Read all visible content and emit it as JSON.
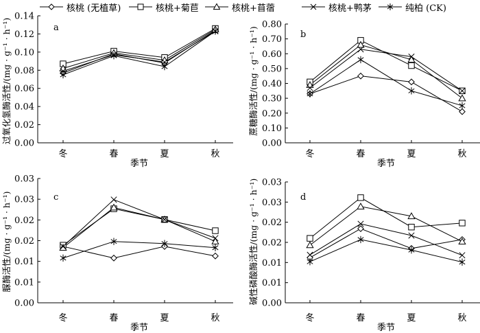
{
  "legend": [
    {
      "label": "核桃 (无植草)",
      "marker": "diamond"
    },
    {
      "label": "核桃+菊苣",
      "marker": "square"
    },
    {
      "label": "核桃+苜蓿",
      "marker": "triangle"
    },
    {
      "label": "核桃+鸭茅",
      "marker": "x"
    },
    {
      "label": "纯柏 (CK)",
      "marker": "asterisk"
    }
  ],
  "chart_data": [
    {
      "type": "line",
      "panel": "a",
      "title": "",
      "xlabel": "季节",
      "ylabel": "过氧化氢酶活性/(mg · g⁻¹ · h⁻¹)",
      "categories": [
        "冬",
        "春",
        "夏",
        "秋"
      ],
      "ylim": [
        0,
        0.14
      ],
      "yticks": [
        0,
        0.02,
        0.04,
        0.06,
        0.08,
        0.1,
        0.12,
        0.14
      ],
      "ytick_labels": [
        "0.00",
        "0.02",
        "0.04",
        "0.06",
        "0.08",
        "0.10",
        "0.12",
        "0.14"
      ],
      "series": [
        {
          "name": "核桃 (无植草)",
          "marker": "diamond",
          "values": [
            0.077,
            0.098,
            0.088,
            0.124
          ]
        },
        {
          "name": "核桃+菊苣",
          "marker": "square",
          "values": [
            0.087,
            0.101,
            0.094,
            0.126
          ]
        },
        {
          "name": "核桃+苜蓿",
          "marker": "triangle",
          "values": [
            0.082,
            0.099,
            0.091,
            0.125
          ]
        },
        {
          "name": "核桃+鸭茅",
          "marker": "x",
          "values": [
            0.079,
            0.097,
            0.089,
            0.123
          ]
        },
        {
          "name": "纯柏 (CK)",
          "marker": "asterisk",
          "values": [
            0.075,
            0.096,
            0.084,
            0.123
          ]
        }
      ]
    },
    {
      "type": "line",
      "panel": "b",
      "title": "",
      "xlabel": "季节",
      "ylabel": "蔗糖酶活性/(mg · g⁻¹ · h⁻¹)",
      "categories": [
        "冬",
        "春",
        "夏",
        "秋"
      ],
      "ylim": [
        0,
        0.8
      ],
      "yticks": [
        0,
        0.1,
        0.2,
        0.3,
        0.4,
        0.5,
        0.6,
        0.7,
        0.8
      ],
      "ytick_labels": [
        "0.00",
        "0.10",
        "0.20",
        "0.30",
        "0.40",
        "0.50",
        "0.60",
        "0.70",
        "0.80"
      ],
      "series": [
        {
          "name": "核桃 (无植草)",
          "marker": "diamond",
          "values": [
            0.33,
            0.45,
            0.41,
            0.21
          ]
        },
        {
          "name": "核桃+菊苣",
          "marker": "square",
          "values": [
            0.41,
            0.69,
            0.52,
            0.35
          ]
        },
        {
          "name": "核桃+苜蓿",
          "marker": "triangle",
          "values": [
            0.39,
            0.66,
            0.56,
            0.3
          ]
        },
        {
          "name": "核桃+鸭茅",
          "marker": "x",
          "values": [
            0.37,
            0.63,
            0.58,
            0.35
          ]
        },
        {
          "name": "纯柏 (CK)",
          "marker": "asterisk",
          "values": [
            0.33,
            0.56,
            0.35,
            0.25
          ]
        }
      ]
    },
    {
      "type": "line",
      "panel": "c",
      "title": "",
      "xlabel": "季节",
      "ylabel": "脲酶活性/(mg · g⁻¹ · h⁻¹)",
      "categories": [
        "冬",
        "春",
        "夏",
        "秋"
      ],
      "ylim": [
        0,
        0.03
      ],
      "yticks": [
        0,
        0.005,
        0.01,
        0.015,
        0.02,
        0.025,
        0.03
      ],
      "ytick_labels": [
        "0.00",
        "0.01",
        "0.01",
        "0.02",
        "0.02",
        "0.03",
        "0.03"
      ],
      "series": [
        {
          "name": "核桃 (无植草)",
          "marker": "diamond",
          "values": [
            0.0136,
            0.0108,
            0.0136,
            0.0113
          ]
        },
        {
          "name": "核桃+菊苣",
          "marker": "square",
          "values": [
            0.0139,
            0.0227,
            0.0201,
            0.0174
          ]
        },
        {
          "name": "核桃+苜蓿",
          "marker": "triangle",
          "values": [
            0.0133,
            0.023,
            0.0201,
            0.0148
          ]
        },
        {
          "name": "核桃+鸭茅",
          "marker": "x",
          "values": [
            0.0136,
            0.0249,
            0.0201,
            0.0156
          ]
        },
        {
          "name": "纯柏 (CK)",
          "marker": "asterisk",
          "values": [
            0.0108,
            0.0148,
            0.0143,
            0.0133
          ]
        }
      ]
    },
    {
      "type": "line",
      "panel": "d",
      "title": "",
      "xlabel": "季节",
      "ylabel": "碱性磷酸酶活性/(mg · g⁻¹ · h⁻¹)",
      "categories": [
        "冬",
        "春",
        "夏",
        "秋"
      ],
      "ylim": [
        0,
        0.03
      ],
      "yticks": [
        0,
        0.005,
        0.01,
        0.015,
        0.02,
        0.025,
        0.03
      ],
      "ytick_labels": [
        "0.00",
        "0.01",
        "0.01",
        "0.02",
        "0.02",
        "0.03",
        "0.03"
      ],
      "series": [
        {
          "name": "核桃 (无植草)",
          "marker": "diamond",
          "values": [
            0.0112,
            0.0184,
            0.0135,
            0.0157
          ]
        },
        {
          "name": "核桃+菊苣",
          "marker": "square",
          "values": [
            0.016,
            0.0261,
            0.0188,
            0.0198
          ]
        },
        {
          "name": "核桃+苜蓿",
          "marker": "triangle",
          "values": [
            0.0143,
            0.0239,
            0.0215,
            0.0152
          ]
        },
        {
          "name": "核桃+鸭茅",
          "marker": "x",
          "values": [
            0.0119,
            0.0196,
            0.0167,
            0.0118
          ]
        },
        {
          "name": "纯柏 (CK)",
          "marker": "asterisk",
          "values": [
            0.0102,
            0.0157,
            0.0131,
            0.0101
          ]
        }
      ]
    }
  ]
}
